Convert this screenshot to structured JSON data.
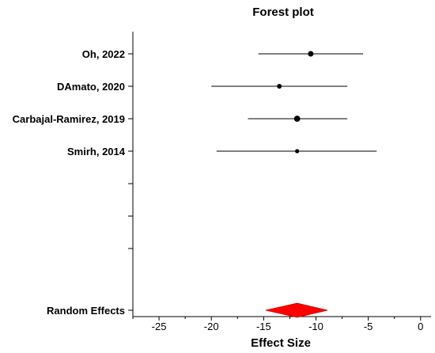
{
  "chart_data": {
    "type": "forest",
    "title": "Forest plot",
    "xlabel": "Effect Size",
    "xlim": [
      -27.5,
      1
    ],
    "xticks": [
      -25,
      -20,
      -15,
      -10,
      -5,
      0
    ],
    "xtick_labels": [
      "-25",
      "-20",
      "-15",
      "-10",
      "-5",
      "0"
    ],
    "studies": [
      {
        "label": "Oh, 2022",
        "effect": -10.5,
        "ci_low": -15.5,
        "ci_high": -5.5,
        "weight": 1.0
      },
      {
        "label": "DAmato, 2020",
        "effect": -13.5,
        "ci_low": -20.0,
        "ci_high": -7.0,
        "weight": 0.75
      },
      {
        "label": "Carbajal-Ramirez, 2019",
        "effect": -11.8,
        "ci_low": -16.5,
        "ci_high": -7.0,
        "weight": 1.2
      },
      {
        "label": "Smirh, 2014",
        "effect": -11.8,
        "ci_low": -19.5,
        "ci_high": -4.2,
        "weight": 0.55
      }
    ],
    "empty_rows": 3,
    "pooled": {
      "label": "Random Effects",
      "effect": -11.8,
      "ci_low": -14.8,
      "ci_high": -8.9,
      "color": "#ff0000"
    }
  }
}
